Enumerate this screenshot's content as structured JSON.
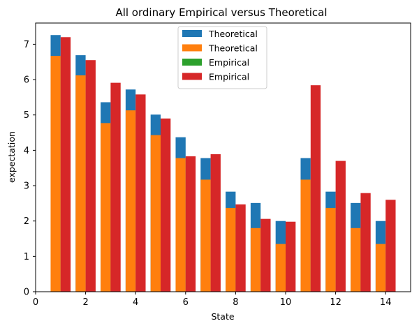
{
  "chart_data": {
    "type": "bar",
    "title": "All ordinary Empirical versus Theoretical",
    "xlabel": "State",
    "ylabel": "expectation",
    "xlim": [
      0,
      15
    ],
    "ylim": [
      0,
      7.6
    ],
    "xticks": [
      0,
      2,
      4,
      6,
      8,
      10,
      12,
      14
    ],
    "yticks": [
      0,
      1,
      2,
      3,
      4,
      5,
      6,
      7
    ],
    "grid": false,
    "legend_position": "top-center",
    "x": [
      1,
      2,
      3,
      4,
      5,
      6,
      7,
      8,
      9,
      10,
      11,
      12,
      13,
      14
    ],
    "series": [
      {
        "name": "Theoretical",
        "color": "#1f77b4",
        "offset": -0.2,
        "values": [
          7.26,
          6.69,
          5.36,
          5.72,
          5.01,
          4.37,
          3.78,
          2.83,
          2.51,
          2.0,
          3.78,
          2.83,
          2.51,
          2.0
        ]
      },
      {
        "name": "Theoretical",
        "color": "#ff7f0e",
        "offset": -0.2,
        "values": [
          6.67,
          6.12,
          4.77,
          5.13,
          4.43,
          3.78,
          3.17,
          2.37,
          1.8,
          1.35,
          3.17,
          2.37,
          1.8,
          1.35
        ]
      },
      {
        "name": "Empirical",
        "color": "#2ca02c",
        "offset": 0.2,
        "values": [
          0,
          0,
          0,
          0,
          0,
          0,
          0,
          0,
          0,
          0,
          0,
          0,
          0,
          0
        ]
      },
      {
        "name": "Empirical",
        "color": "#d62728",
        "offset": 0.2,
        "values": [
          7.2,
          6.55,
          5.91,
          5.58,
          4.9,
          3.83,
          3.89,
          2.47,
          2.06,
          1.98,
          5.84,
          3.7,
          2.79,
          2.6
        ]
      }
    ]
  }
}
